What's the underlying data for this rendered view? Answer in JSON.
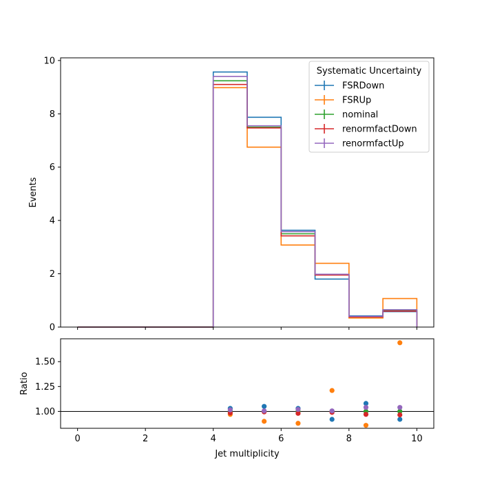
{
  "chart_data": [
    {
      "type": "step",
      "ylabel": "Events",
      "xlim": [
        -0.5,
        10.5
      ],
      "ylim": [
        0,
        10.1
      ],
      "yticks": [
        0,
        2,
        4,
        6,
        8,
        10
      ],
      "xticks": [
        0,
        2,
        4,
        6,
        8,
        10
      ],
      "bin_edges": [
        0,
        1,
        2,
        3,
        4,
        5,
        6,
        7,
        8,
        9,
        10
      ],
      "legend": {
        "title": "Systematic Uncertainty",
        "placement": "top-right"
      },
      "series": [
        {
          "name": "FSRDown",
          "color": "#1f77b4",
          "values": [
            0,
            0,
            0,
            0,
            9.57,
            7.87,
            3.63,
            1.8,
            0.42,
            0.58
          ]
        },
        {
          "name": "FSRUp",
          "color": "#ff7f0e",
          "values": [
            0,
            0,
            0,
            0,
            8.98,
            6.75,
            3.08,
            2.39,
            0.34,
            1.07
          ]
        },
        {
          "name": "nominal",
          "color": "#2ca02c",
          "values": [
            0,
            0,
            0,
            0,
            9.24,
            7.5,
            3.5,
            1.97,
            0.39,
            0.62
          ]
        },
        {
          "name": "renormfactDown",
          "color": "#d62728",
          "values": [
            0,
            0,
            0,
            0,
            9.1,
            7.47,
            3.42,
            1.95,
            0.38,
            0.6
          ]
        },
        {
          "name": "renormfactUp",
          "color": "#9467bd",
          "values": [
            0,
            0,
            0,
            0,
            9.4,
            7.55,
            3.58,
            1.98,
            0.4,
            0.65
          ]
        }
      ]
    },
    {
      "type": "scatter",
      "xlabel": "Jet multiplicity",
      "ylabel": "Ratio",
      "xlim": [
        -0.5,
        10.5
      ],
      "ylim": [
        0.83,
        1.73
      ],
      "yticks": [
        1.0,
        1.25,
        1.5
      ],
      "ytick_labels": [
        "1.00",
        "1.25",
        "1.50"
      ],
      "xticks": [
        0,
        2,
        4,
        6,
        8,
        10
      ],
      "reference_line": 1.0,
      "x": [
        4.5,
        5.5,
        6.5,
        7.5,
        8.5,
        9.5
      ],
      "series": [
        {
          "name": "FSRDown",
          "color": "#1f77b4",
          "values": [
            1.03,
            1.05,
            1.03,
            0.92,
            1.08,
            0.92
          ]
        },
        {
          "name": "FSRUp",
          "color": "#ff7f0e",
          "values": [
            0.97,
            0.9,
            0.88,
            1.21,
            0.86,
            1.69
          ]
        },
        {
          "name": "nominal",
          "color": "#2ca02c",
          "values": [
            1.0,
            1.0,
            1.0,
            1.0,
            1.0,
            1.0
          ]
        },
        {
          "name": "renormfactDown",
          "color": "#d62728",
          "values": [
            0.985,
            0.995,
            0.98,
            0.99,
            0.97,
            0.965
          ]
        },
        {
          "name": "renormfactUp",
          "color": "#9467bd",
          "values": [
            1.015,
            1.005,
            1.02,
            1.005,
            1.04,
            1.04
          ]
        }
      ]
    }
  ]
}
